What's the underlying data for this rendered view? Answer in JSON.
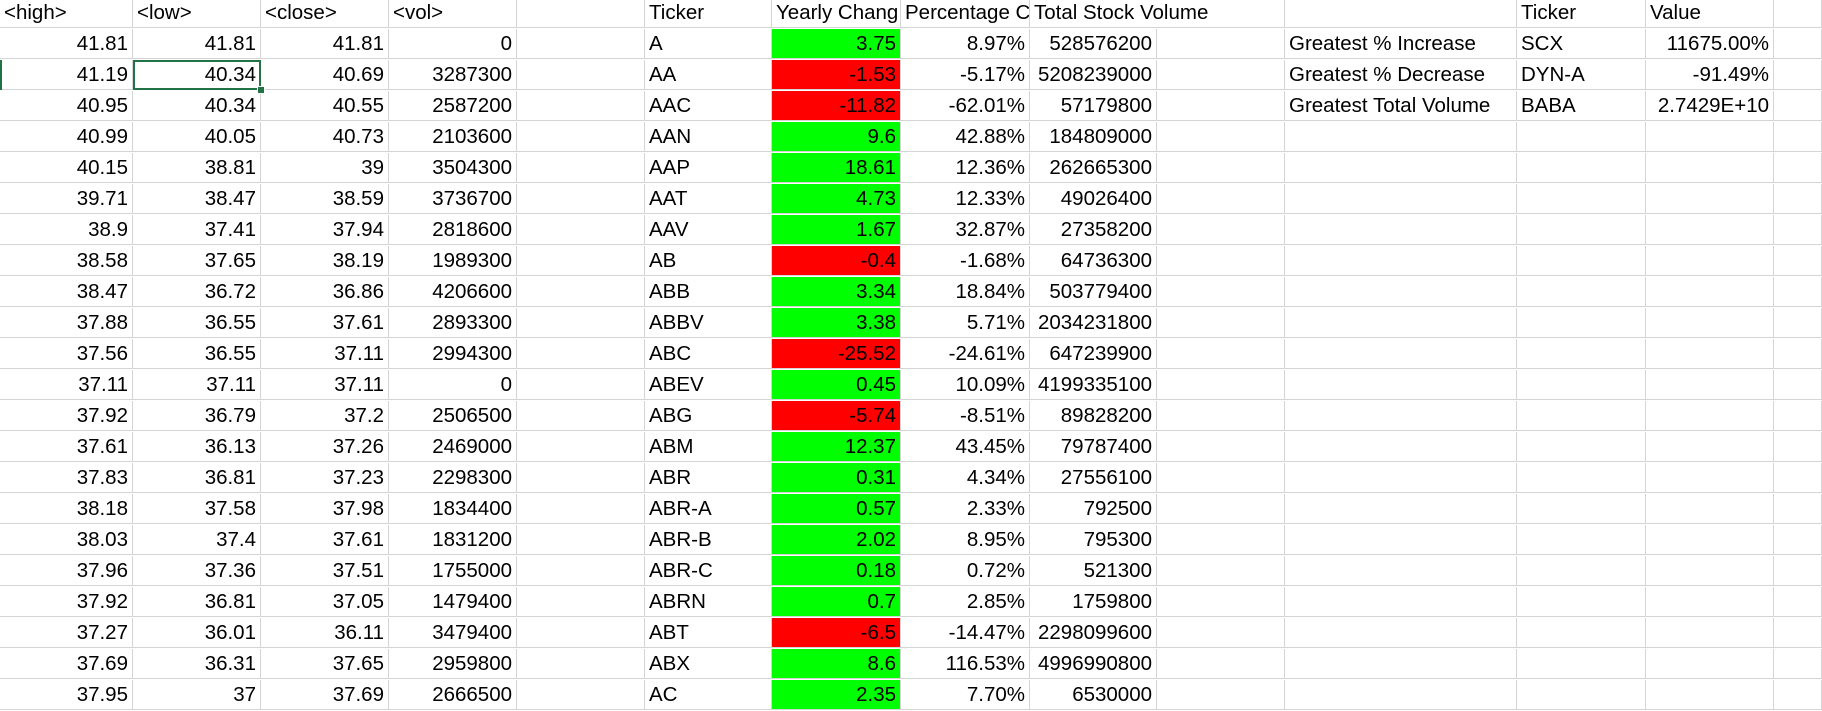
{
  "colors": {
    "positive": "#00ff00",
    "negative": "#ff0000",
    "grid": "#d4d4d4",
    "selection": "#217346"
  },
  "headers": {
    "high": "<high>",
    "low": "<low>",
    "close": "<close>",
    "vol": "<vol>",
    "ticker": "Ticker",
    "yearly_change": "Yearly Chang",
    "percentage_change": "Percentage C",
    "total_volume": "Total Stock Volume",
    "summary_ticker": "Ticker",
    "summary_value": "Value"
  },
  "price_rows": [
    [
      "41.81",
      "41.81",
      "41.81",
      "0"
    ],
    [
      "41.19",
      "40.34",
      "40.69",
      "3287300"
    ],
    [
      "40.95",
      "40.34",
      "40.55",
      "2587200"
    ],
    [
      "40.99",
      "40.05",
      "40.73",
      "2103600"
    ],
    [
      "40.15",
      "38.81",
      "39",
      "3504300"
    ],
    [
      "39.71",
      "38.47",
      "38.59",
      "3736700"
    ],
    [
      "38.9",
      "37.41",
      "37.94",
      "2818600"
    ],
    [
      "38.58",
      "37.65",
      "38.19",
      "1989300"
    ],
    [
      "38.47",
      "36.72",
      "36.86",
      "4206600"
    ],
    [
      "37.88",
      "36.55",
      "37.61",
      "2893300"
    ],
    [
      "37.56",
      "36.55",
      "37.11",
      "2994300"
    ],
    [
      "37.11",
      "37.11",
      "37.11",
      "0"
    ],
    [
      "37.92",
      "36.79",
      "37.2",
      "2506500"
    ],
    [
      "37.61",
      "36.13",
      "37.26",
      "2469000"
    ],
    [
      "37.83",
      "36.81",
      "37.23",
      "2298300"
    ],
    [
      "38.18",
      "37.58",
      "37.98",
      "1834400"
    ],
    [
      "38.03",
      "37.4",
      "37.61",
      "1831200"
    ],
    [
      "37.96",
      "37.36",
      "37.51",
      "1755000"
    ],
    [
      "37.92",
      "36.81",
      "37.05",
      "1479400"
    ],
    [
      "37.27",
      "36.01",
      "36.11",
      "3479400"
    ],
    [
      "37.69",
      "36.31",
      "37.65",
      "2959800"
    ],
    [
      "37.95",
      "37",
      "37.69",
      "2666500"
    ]
  ],
  "ticker_rows": [
    {
      "ticker": "A",
      "change": "3.75",
      "positive": true,
      "pct": "8.97%",
      "volume": "528576200"
    },
    {
      "ticker": "AA",
      "change": "-1.53",
      "positive": false,
      "pct": "-5.17%",
      "volume": "5208239000"
    },
    {
      "ticker": "AAC",
      "change": "-11.82",
      "positive": false,
      "pct": "-62.01%",
      "volume": "57179800"
    },
    {
      "ticker": "AAN",
      "change": "9.6",
      "positive": true,
      "pct": "42.88%",
      "volume": "184809000"
    },
    {
      "ticker": "AAP",
      "change": "18.61",
      "positive": true,
      "pct": "12.36%",
      "volume": "262665300"
    },
    {
      "ticker": "AAT",
      "change": "4.73",
      "positive": true,
      "pct": "12.33%",
      "volume": "49026400"
    },
    {
      "ticker": "AAV",
      "change": "1.67",
      "positive": true,
      "pct": "32.87%",
      "volume": "27358200"
    },
    {
      "ticker": "AB",
      "change": "-0.4",
      "positive": false,
      "pct": "-1.68%",
      "volume": "64736300"
    },
    {
      "ticker": "ABB",
      "change": "3.34",
      "positive": true,
      "pct": "18.84%",
      "volume": "503779400"
    },
    {
      "ticker": "ABBV",
      "change": "3.38",
      "positive": true,
      "pct": "5.71%",
      "volume": "2034231800"
    },
    {
      "ticker": "ABC",
      "change": "-25.52",
      "positive": false,
      "pct": "-24.61%",
      "volume": "647239900"
    },
    {
      "ticker": "ABEV",
      "change": "0.45",
      "positive": true,
      "pct": "10.09%",
      "volume": "4199335100"
    },
    {
      "ticker": "ABG",
      "change": "-5.74",
      "positive": false,
      "pct": "-8.51%",
      "volume": "89828200"
    },
    {
      "ticker": "ABM",
      "change": "12.37",
      "positive": true,
      "pct": "43.45%",
      "volume": "79787400"
    },
    {
      "ticker": "ABR",
      "change": "0.31",
      "positive": true,
      "pct": "4.34%",
      "volume": "27556100"
    },
    {
      "ticker": "ABR-A",
      "change": "0.57",
      "positive": true,
      "pct": "2.33%",
      "volume": "792500"
    },
    {
      "ticker": "ABR-B",
      "change": "2.02",
      "positive": true,
      "pct": "8.95%",
      "volume": "795300"
    },
    {
      "ticker": "ABR-C",
      "change": "0.18",
      "positive": true,
      "pct": "0.72%",
      "volume": "521300"
    },
    {
      "ticker": "ABRN",
      "change": "0.7",
      "positive": true,
      "pct": "2.85%",
      "volume": "1759800"
    },
    {
      "ticker": "ABT",
      "change": "-6.5",
      "positive": false,
      "pct": "-14.47%",
      "volume": "2298099600"
    },
    {
      "ticker": "ABX",
      "change": "8.6",
      "positive": true,
      "pct": "116.53%",
      "volume": "4996990800"
    },
    {
      "ticker": "AC",
      "change": "2.35",
      "positive": true,
      "pct": "7.70%",
      "volume": "6530000"
    }
  ],
  "summary": [
    {
      "label": "Greatest % Increase",
      "ticker": "SCX",
      "value": "11675.00%"
    },
    {
      "label": "Greatest % Decrease",
      "ticker": "DYN-A",
      "value": "-91.49%"
    },
    {
      "label": "Greatest Total Volume",
      "ticker": "BABA",
      "value": "2.7429E+10"
    }
  ]
}
